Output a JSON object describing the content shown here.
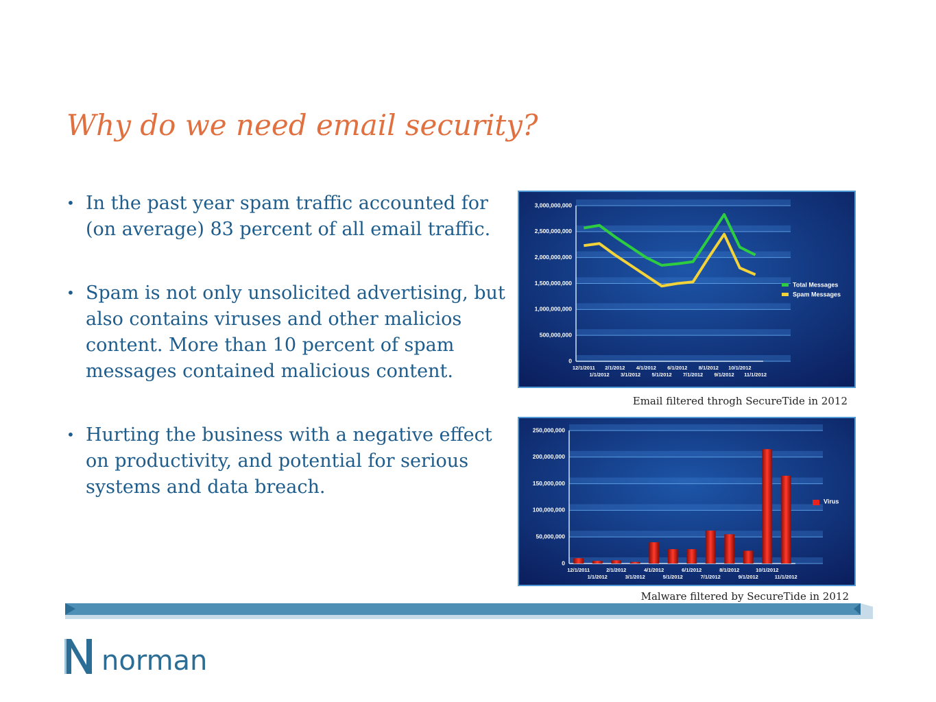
{
  "title": "Why do we need email security?",
  "bullets": [
    "In the past year spam traffic accounted for (on average) 83 percent of all email traffic.",
    "Spam is not only unsolicited advertising, but also contains viruses and other malicios content. More than 10 percent of spam messages contained malicious content.",
    "Hurting the business with a negative effect on productivity, and potential for serious systems and data breach."
  ],
  "captions": [
    "Email filtered throgh SecureTide in 2012",
    "Malware filtered by SecureTide in 2012"
  ],
  "logo": "norman",
  "chart_data": [
    {
      "type": "line",
      "categories": [
        "12/1/2011",
        "1/1/2012",
        "2/1/2012",
        "3/1/2012",
        "4/1/2012",
        "5/1/2012",
        "6/1/2012",
        "7/1/2012",
        "8/1/2012",
        "9/1/2012",
        "10/1/2012",
        "11/1/2012"
      ],
      "series": [
        {
          "name": "Total Messages",
          "color": "#2ecc40",
          "values": [
            2570000000,
            2620000000,
            2400000000,
            2200000000,
            2000000000,
            1850000000,
            1880000000,
            1920000000,
            2370000000,
            2830000000,
            2200000000,
            2050000000
          ]
        },
        {
          "name": "Spam Messages",
          "color": "#f2d33a",
          "values": [
            2230000000,
            2270000000,
            2050000000,
            1850000000,
            1650000000,
            1450000000,
            1500000000,
            1530000000,
            2000000000,
            2450000000,
            1800000000,
            1670000000
          ]
        }
      ],
      "ylim": [
        0,
        3000000000
      ],
      "yticks": [
        0,
        {
          "value": 500000000,
          "label": "500,000,000"
        },
        {
          "value": 1000000000,
          "label": "1,000,000,000"
        },
        {
          "value": 1500000000,
          "label": "1,500,000,000"
        },
        {
          "value": 2000000000,
          "label": "2,000,000,000"
        },
        {
          "value": 2500000000,
          "label": "2,500,000,000"
        },
        {
          "value": 3000000000,
          "label": "3,000,000,000"
        }
      ],
      "grid": true,
      "legend": "right"
    },
    {
      "type": "bar",
      "categories": [
        "12/1/2011",
        "1/1/2012",
        "2/1/2012",
        "3/1/2012",
        "4/1/2012",
        "5/1/2012",
        "6/1/2012",
        "7/1/2012",
        "8/1/2012",
        "9/1/2012",
        "10/1/2012",
        "11/1/2012"
      ],
      "series": [
        {
          "name": "Virus",
          "color": "#e8221c",
          "values": [
            10000000,
            5000000,
            6000000,
            3000000,
            40000000,
            27000000,
            27000000,
            62000000,
            55000000,
            24000000,
            215000000,
            165000000
          ]
        }
      ],
      "ylim": [
        0,
        250000000
      ],
      "yticks": [
        0,
        {
          "value": 50000000,
          "label": "50,000,000"
        },
        {
          "value": 100000000,
          "label": "100,000,000"
        },
        {
          "value": 150000000,
          "label": "150,000,000"
        },
        {
          "value": 200000000,
          "label": "200,000,000"
        },
        {
          "value": 250000000,
          "label": "250,000,000"
        }
      ],
      "grid": true,
      "legend": "right"
    }
  ]
}
